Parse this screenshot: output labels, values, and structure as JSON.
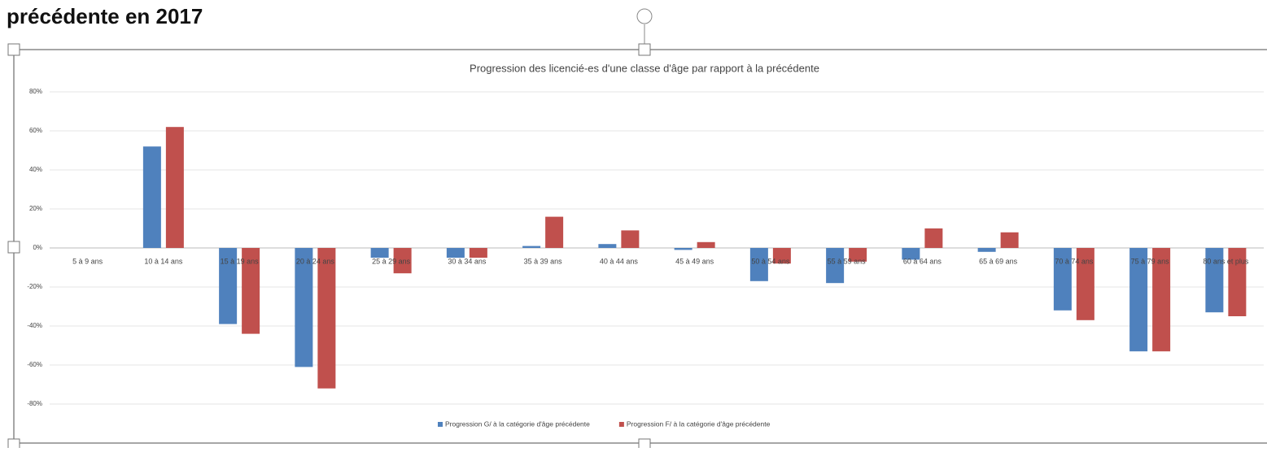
{
  "heading": "précédente en 2017",
  "chart_data": {
    "type": "bar",
    "title": "Progression des licencié-es d'une classe d'âge par rapport à la précédente",
    "categories": [
      "5 à 9 ans",
      "10 à 14 ans",
      "15 à 19 ans",
      "20 à 24 ans",
      "25 à 29 ans",
      "30 à 34 ans",
      "35 à 39 ans",
      "40 à 44 ans",
      "45 à 49 ans",
      "50 à 54 ans",
      "55 à 59 ans",
      "60 à 64 ans",
      "65 à 69 ans",
      "70 à 74 ans",
      "75 à 79 ans",
      "80 ans et plus"
    ],
    "series": [
      {
        "name": "Progression G/ à la catégorie d'âge précédente",
        "color": "#4f81bd",
        "values": [
          null,
          52,
          -39,
          -61,
          -5,
          -5,
          1,
          2,
          -1,
          -17,
          -18,
          -6,
          -2,
          -32,
          -53,
          -33
        ]
      },
      {
        "name": "Progression F/ à la catégorie d'âge précédente",
        "color": "#c0504d",
        "values": [
          null,
          62,
          -44,
          -72,
          -13,
          -5,
          16,
          9,
          3,
          -8,
          -7,
          10,
          8,
          -37,
          -53,
          -35
        ]
      }
    ],
    "ylim": [
      -80,
      80
    ],
    "yticks": [
      {
        "value": -80,
        "label": "-80%"
      },
      {
        "value": -60,
        "label": "-60%"
      },
      {
        "value": -40,
        "label": "-40%"
      },
      {
        "value": -20,
        "label": "-20%"
      },
      {
        "value": 0,
        "label": "0%"
      },
      {
        "value": 20,
        "label": "20%"
      },
      {
        "value": 40,
        "label": "40%"
      },
      {
        "value": 60,
        "label": "60%"
      },
      {
        "value": 80,
        "label": "80%"
      }
    ],
    "grid": true,
    "legend": "bottom"
  }
}
